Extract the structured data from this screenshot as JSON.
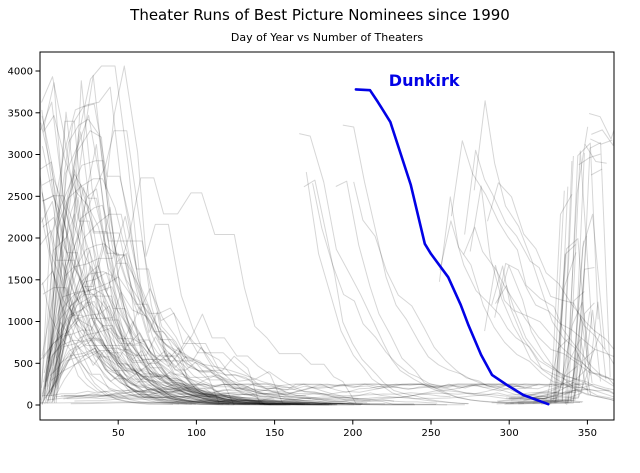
{
  "figure": {
    "title": "Theater Runs of Best Picture Nominees since 1990",
    "subtitle": "Day of Year vs Number of Theaters",
    "background_color": "#ffffff"
  },
  "chart_data": {
    "type": "line",
    "title": "Theater Runs of Best Picture Nominees since 1990",
    "subtitle": "Day of Year vs Number of Theaters",
    "xlabel": "",
    "ylabel": "",
    "xlim": [
      0,
      367
    ],
    "ylim": [
      -180,
      4228
    ],
    "x_ticks": [
      50,
      100,
      150,
      200,
      250,
      300,
      350
    ],
    "y_ticks": [
      0,
      500,
      1000,
      1500,
      2000,
      2500,
      3000,
      3500,
      4000
    ],
    "grid": false,
    "legend_position": "none",
    "annotation": {
      "text": "Dunkirk",
      "color": "#0202e6",
      "day": 223,
      "theaters": 3820,
      "font_size": 16,
      "bold": true
    },
    "highlight_series": {
      "name": "Dunkirk",
      "color": "#0202e6",
      "line_width": 2.6,
      "x": [
        202,
        211,
        216,
        220,
        224,
        237,
        246,
        250,
        261,
        269,
        274,
        282,
        289,
        299,
        309,
        325
      ],
      "y": [
        3780,
        3770,
        3630,
        3510,
        3390,
        2640,
        1930,
        1810,
        1530,
        1200,
        955,
        600,
        360,
        235,
        120,
        10
      ]
    },
    "background_series": {
      "description": "Approximately 150 unlabeled, overlapping translucent gray curves; each is one Best Picture nominee's weekly theater count vs day of year. Dense tangle of January expansions and carryover runs on the left (days 0-130), sparse decaying tails mid-year, and steep late-year platform-release spikes near days 300-367.",
      "color": "#000000",
      "opacity": 0.16,
      "line_width": 1,
      "seed": 1990,
      "count": 150,
      "archetypes": [
        {
          "name": "winter-expansion",
          "count": 60,
          "start_day": [
            0,
            12
          ],
          "start_value": [
            5,
            600
          ],
          "rise_weeks": [
            2,
            6
          ],
          "peak": [
            600,
            3900
          ],
          "weekly_decay": [
            0.56,
            0.85
          ],
          "end_day": [
            100,
            230
          ]
        },
        {
          "name": "january-carryover",
          "count": 22,
          "start_day": [
            0,
            2
          ],
          "start_value": [
            1200,
            3700
          ],
          "weekly_decay": [
            0.62,
            0.88
          ]
        },
        {
          "name": "summer-wide",
          "count": 7,
          "start_day": [
            130,
            215
          ],
          "start_value": [
            2400,
            4000
          ],
          "weekly_decay": [
            0.72,
            0.9
          ]
        },
        {
          "name": "fall-wide",
          "count": 13,
          "start_day": [
            245,
            302
          ],
          "start_value": [
            1400,
            3700
          ],
          "weekly_decay": [
            0.7,
            0.92
          ]
        },
        {
          "name": "december-platform",
          "count": 32,
          "start_day": [
            285,
            340
          ],
          "start_value": [
            2,
            90
          ],
          "spike_value": [
            250,
            3900
          ]
        },
        {
          "name": "december-wide",
          "count": 6,
          "start_day": [
            344,
            356
          ],
          "start_value": [
            2600,
            3800
          ]
        },
        {
          "name": "low-tail",
          "count": 10,
          "start_day": [
            0,
            25
          ],
          "start_value": [
            8,
            120
          ],
          "end_day": [
            230,
            367
          ]
        }
      ]
    },
    "axes_style": {
      "frame_color": "#000000",
      "tick_color": "#000000",
      "tick_label_color": "#000000",
      "tick_font_size": 10
    }
  }
}
